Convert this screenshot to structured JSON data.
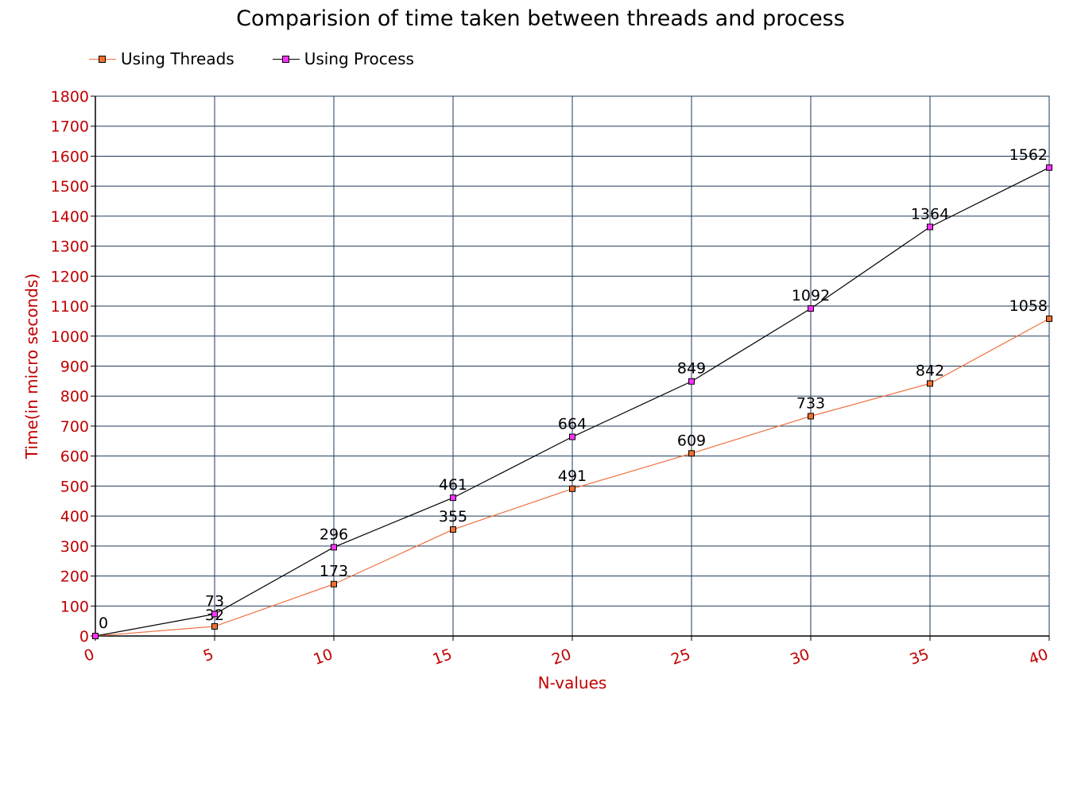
{
  "chart_data": {
    "type": "line",
    "title": "Comparision of time taken between threads and process",
    "xlabel": "N-values",
    "ylabel": "Time(in micro seconds)",
    "x": [
      0,
      5,
      10,
      15,
      20,
      25,
      30,
      35,
      40
    ],
    "xlim": [
      0,
      40
    ],
    "ylim": [
      0,
      1800
    ],
    "x_ticks": [
      "0",
      "5",
      "10",
      "15",
      "20",
      "25",
      "30",
      "35",
      "40"
    ],
    "y_ticks": [
      "0",
      "100",
      "200",
      "300",
      "400",
      "500",
      "600",
      "700",
      "800",
      "900",
      "1000",
      "1100",
      "1200",
      "1300",
      "1400",
      "1500",
      "1600",
      "1700",
      "1800"
    ],
    "grid": true,
    "legend_position": "top-left",
    "series": [
      {
        "name": "Using Threads",
        "values": [
          0,
          32,
          173,
          355,
          491,
          609,
          733,
          842,
          1058
        ],
        "labels": [
          "0",
          "32",
          "173",
          "355",
          "491",
          "609",
          "733",
          "842",
          "1058"
        ],
        "line_color": "#f07040",
        "marker_color": "#f07030"
      },
      {
        "name": "Using Process",
        "values": [
          0,
          73,
          296,
          461,
          664,
          849,
          1092,
          1364,
          1562
        ],
        "labels": [
          "0",
          "73",
          "296",
          "461",
          "664",
          "849",
          "1092",
          "1364",
          "1562"
        ],
        "line_color": "#000000",
        "marker_color": "#ff33ff"
      }
    ],
    "grid_color": "#1f3a5a",
    "tick_color": "#c00000"
  }
}
